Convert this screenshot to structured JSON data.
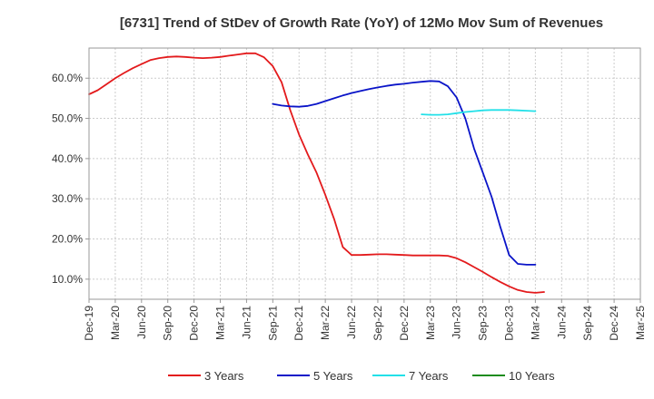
{
  "chart_data": {
    "type": "line",
    "title": "[6731]  Trend of StDev of Growth Rate (YoY) of 12Mo Mov Sum of Revenues",
    "xlabel": "",
    "ylabel": "",
    "ylim": [
      5,
      67.5
    ],
    "yticks": [
      10,
      20,
      30,
      40,
      50,
      60
    ],
    "ytick_labels": [
      "10.0%",
      "20.0%",
      "30.0%",
      "40.0%",
      "50.0%",
      "60.0%"
    ],
    "xlim": [
      0,
      63
    ],
    "xticks": [
      0,
      3,
      6,
      9,
      12,
      15,
      18,
      21,
      24,
      27,
      30,
      33,
      36,
      39,
      42,
      45,
      48,
      51,
      54,
      57,
      60,
      63
    ],
    "xtick_labels": [
      "Dec-19",
      "Mar-20",
      "Jun-20",
      "Sep-20",
      "Dec-20",
      "Mar-21",
      "Jun-21",
      "Sep-21",
      "Dec-21",
      "Mar-22",
      "Jun-22",
      "Sep-22",
      "Dec-22",
      "Mar-23",
      "Jun-23",
      "Sep-23",
      "Dec-23",
      "Mar-24",
      "Jun-24",
      "Sep-24",
      "Dec-24",
      "Mar-25"
    ],
    "grid": true,
    "legend_position": "bottom",
    "series": [
      {
        "name": "3 Years",
        "color": "#e31a1c",
        "points": [
          [
            0,
            56
          ],
          [
            1,
            57
          ],
          [
            2,
            58.5
          ],
          [
            3,
            60
          ],
          [
            4,
            61.3
          ],
          [
            5,
            62.5
          ],
          [
            6,
            63.5
          ],
          [
            7,
            64.5
          ],
          [
            8,
            65
          ],
          [
            9,
            65.3
          ],
          [
            10,
            65.4
          ],
          [
            11,
            65.3
          ],
          [
            12,
            65.1
          ],
          [
            13,
            65
          ],
          [
            14,
            65.1
          ],
          [
            15,
            65.3
          ],
          [
            16,
            65.6
          ],
          [
            17,
            65.9
          ],
          [
            18,
            66.2
          ],
          [
            19,
            66.2
          ],
          [
            20,
            65.2
          ],
          [
            21,
            63
          ],
          [
            22,
            59
          ],
          [
            23,
            52
          ],
          [
            24,
            46
          ],
          [
            25,
            41
          ],
          [
            26,
            36.5
          ],
          [
            27,
            31
          ],
          [
            28,
            25
          ],
          [
            29,
            18
          ],
          [
            30,
            16
          ],
          [
            31,
            16
          ],
          [
            32,
            16.1
          ],
          [
            33,
            16.2
          ],
          [
            34,
            16.2
          ],
          [
            35,
            16.1
          ],
          [
            36,
            16
          ],
          [
            37,
            15.9
          ],
          [
            38,
            15.9
          ],
          [
            39,
            15.9
          ],
          [
            40,
            15.9
          ],
          [
            41,
            15.8
          ],
          [
            42,
            15.2
          ],
          [
            43,
            14.2
          ],
          [
            44,
            13
          ],
          [
            45,
            11.8
          ],
          [
            46,
            10.5
          ],
          [
            47,
            9.3
          ],
          [
            48,
            8.2
          ],
          [
            49,
            7.3
          ],
          [
            50,
            6.8
          ],
          [
            51,
            6.6
          ],
          [
            52,
            6.8
          ]
        ]
      },
      {
        "name": "5 Years",
        "color": "#0a14c8",
        "points": [
          [
            21,
            53.6
          ],
          [
            22,
            53.2
          ],
          [
            23,
            53
          ],
          [
            24,
            52.9
          ],
          [
            25,
            53.1
          ],
          [
            26,
            53.6
          ],
          [
            27,
            54.3
          ],
          [
            28,
            55
          ],
          [
            29,
            55.7
          ],
          [
            30,
            56.3
          ],
          [
            31,
            56.8
          ],
          [
            32,
            57.3
          ],
          [
            33,
            57.7
          ],
          [
            34,
            58.1
          ],
          [
            35,
            58.4
          ],
          [
            36,
            58.6
          ],
          [
            37,
            58.9
          ],
          [
            38,
            59.1
          ],
          [
            39,
            59.3
          ],
          [
            40,
            59.2
          ],
          [
            41,
            58
          ],
          [
            42,
            55.2
          ],
          [
            43,
            50
          ],
          [
            44,
            42.5
          ],
          [
            45,
            36.5
          ],
          [
            46,
            30.5
          ],
          [
            47,
            23
          ],
          [
            48,
            16
          ],
          [
            49,
            13.8
          ],
          [
            50,
            13.6
          ],
          [
            51,
            13.6
          ]
        ]
      },
      {
        "name": "7 Years",
        "color": "#22e0e8",
        "points": [
          [
            38,
            51
          ],
          [
            39,
            50.9
          ],
          [
            40,
            50.9
          ],
          [
            41,
            51
          ],
          [
            42,
            51.3
          ],
          [
            43,
            51.6
          ],
          [
            44,
            51.8
          ],
          [
            45,
            52
          ],
          [
            46,
            52.1
          ],
          [
            47,
            52.1
          ],
          [
            48,
            52.1
          ],
          [
            49,
            52
          ],
          [
            50,
            51.9
          ],
          [
            51,
            51.8
          ]
        ]
      },
      {
        "name": "10 Years",
        "color": "#1e8c1e",
        "points": []
      }
    ]
  }
}
